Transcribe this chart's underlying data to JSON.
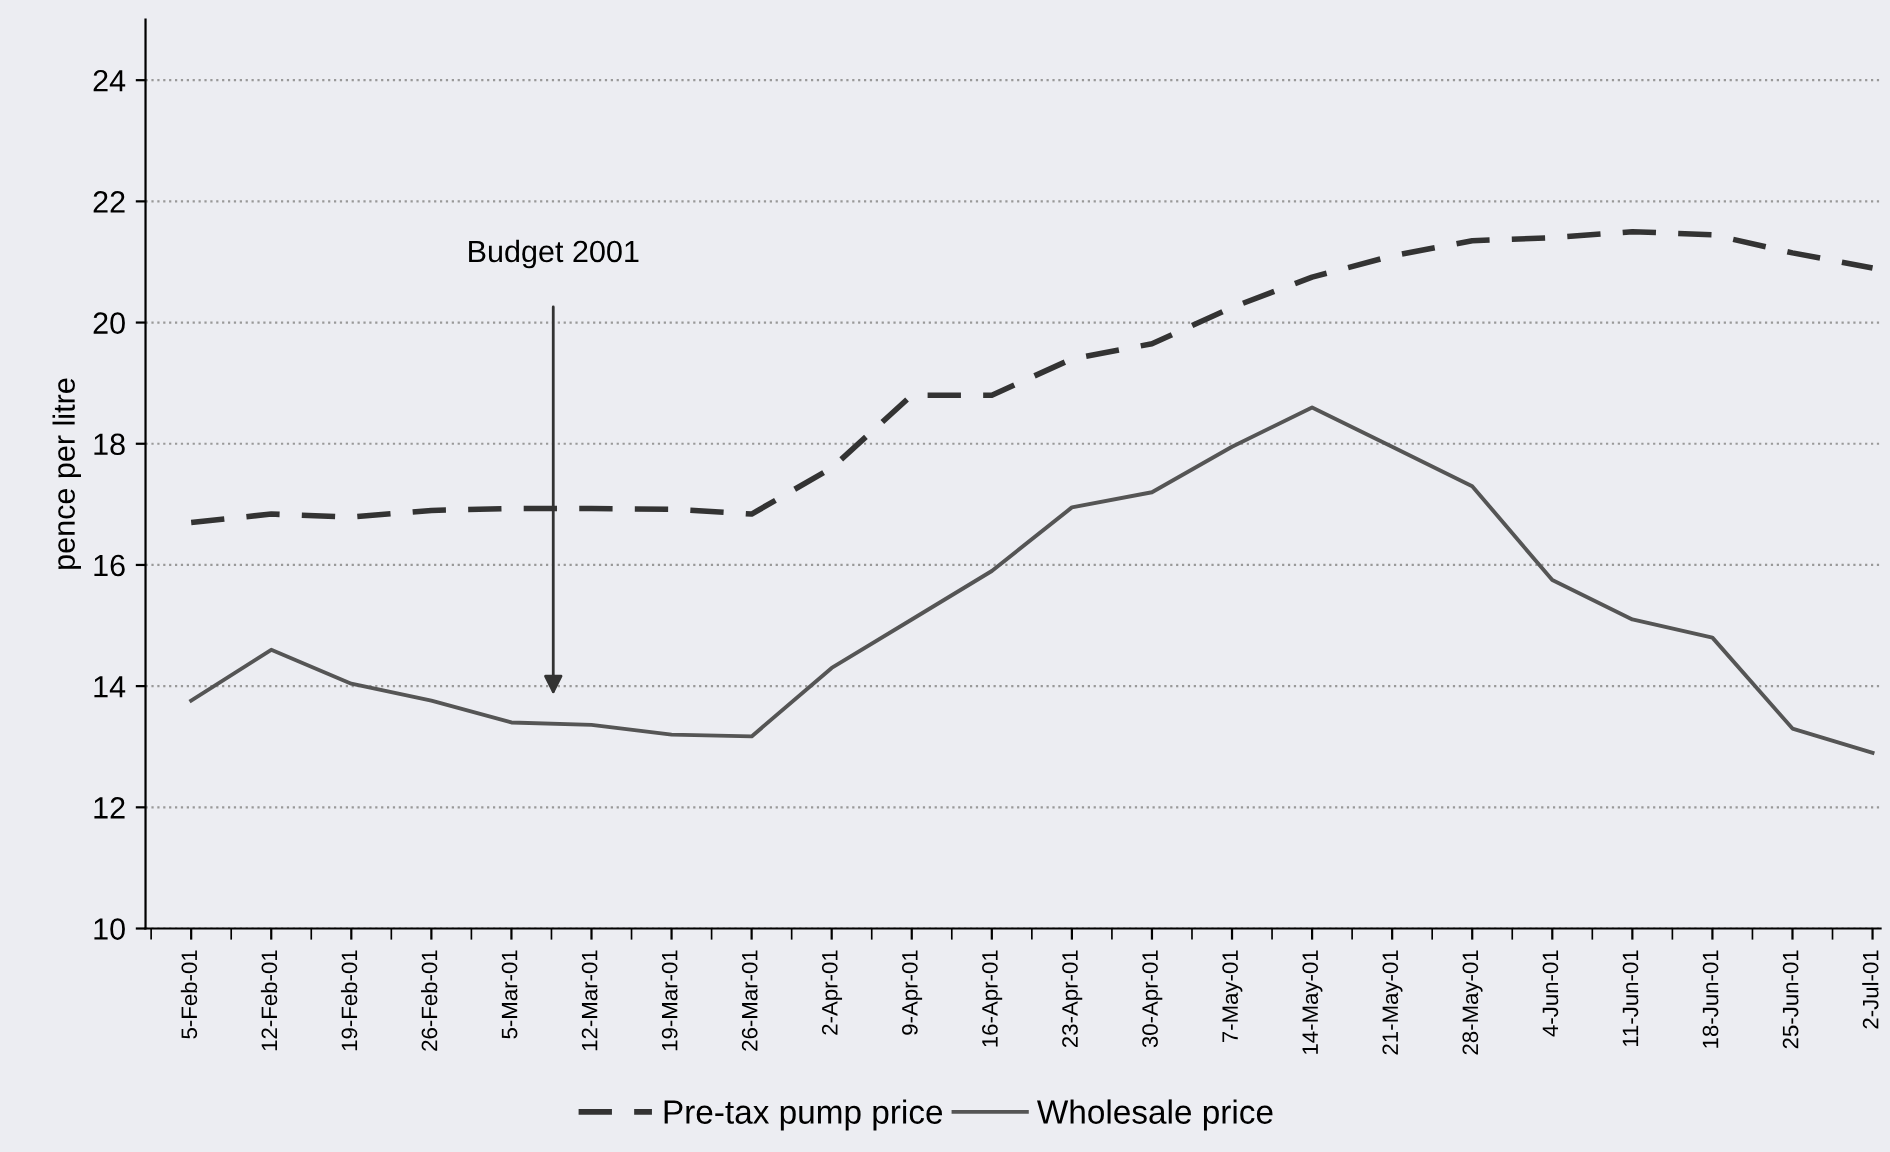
{
  "chart_data": {
    "type": "line",
    "ylabel": "pence per litre",
    "categories": [
      "5-Feb-01",
      "12-Feb-01",
      "19-Feb-01",
      "26-Feb-01",
      "5-Mar-01",
      "12-Mar-01",
      "19-Mar-01",
      "26-Mar-01",
      "2-Apr-01",
      "9-Apr-01",
      "16-Apr-01",
      "23-Apr-01",
      "30-Apr-01",
      "7-May-01",
      "14-May-01",
      "21-May-01",
      "28-May-01",
      "4-Jun-01",
      "11-Jun-01",
      "18-Jun-01",
      "25-Jun-01",
      "2-Jul-01"
    ],
    "series": [
      {
        "name": "Pre-tax pump price",
        "color": "#333333",
        "line_style": "dashed",
        "values": [
          16.7,
          16.84,
          16.79,
          16.9,
          16.93,
          16.93,
          16.92,
          16.84,
          17.6,
          18.8,
          18.8,
          19.4,
          19.65,
          20.25,
          20.75,
          21.1,
          21.35,
          21.4,
          21.5,
          21.45,
          21.15,
          20.9
        ]
      },
      {
        "name": "Wholesale price",
        "color": "#555555",
        "line_style": "solid",
        "values": [
          13.76,
          14.6,
          14.04,
          13.76,
          13.4,
          13.36,
          13.2,
          13.17,
          14.3,
          15.1,
          15.9,
          16.95,
          17.2,
          17.95,
          18.6,
          17.95,
          17.3,
          15.75,
          15.1,
          14.8,
          13.3,
          12.9
        ]
      }
    ],
    "ylim": [
      10,
      25
    ],
    "yticks": [
      10,
      12,
      14,
      16,
      18,
      20,
      22,
      24
    ],
    "grid": "y",
    "legend": "bottom",
    "marker": "none",
    "annotations": [
      "Budget 2001"
    ]
  }
}
